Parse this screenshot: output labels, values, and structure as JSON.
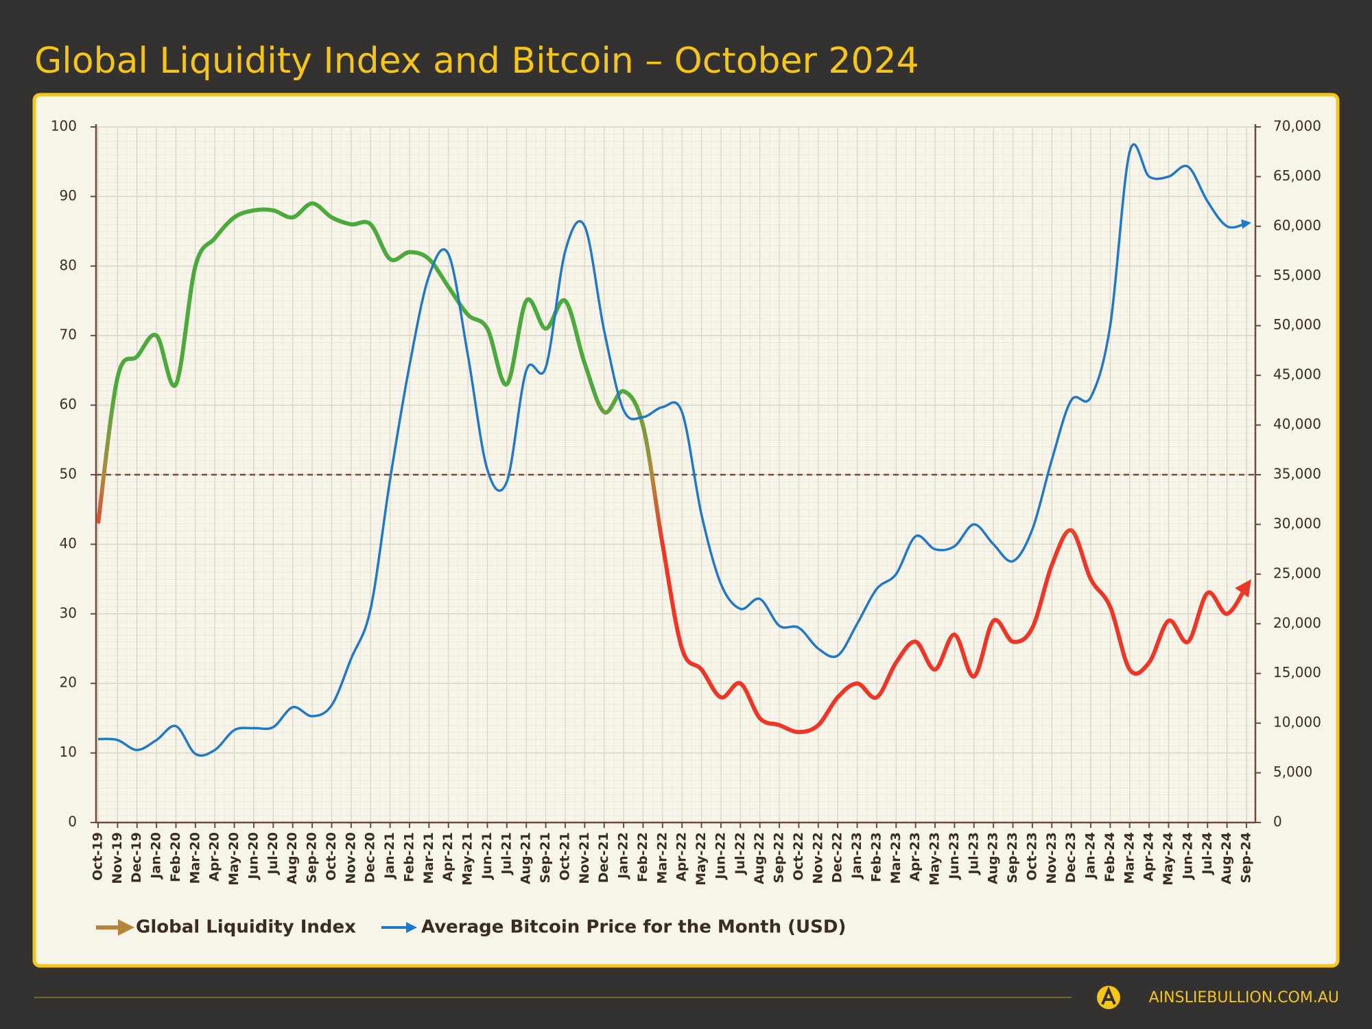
{
  "chart_data": {
    "type": "line",
    "title": "Global Liquidity Index and Bitcoin – October 2024",
    "footer": "AINSLIEBULLION.COM.AU",
    "categories": [
      "Oct-19",
      "Nov-19",
      "Dec-19",
      "Jan-20",
      "Feb-20",
      "Mar-20",
      "Apr-20",
      "May-20",
      "Jun-20",
      "Jul-20",
      "Aug-20",
      "Sep-20",
      "Oct-20",
      "Nov-20",
      "Dec-20",
      "Jan-21",
      "Feb-21",
      "Mar-21",
      "Apr-21",
      "May-21",
      "Jun-21",
      "Jul-21",
      "Aug-21",
      "Sep-21",
      "Oct-21",
      "Nov-21",
      "Dec-21",
      "Jan-22",
      "Feb-22",
      "Mar-22",
      "Apr-22",
      "May-22",
      "Jun-22",
      "Jul-22",
      "Aug-22",
      "Sep-22",
      "Oct-22",
      "Nov-22",
      "Dec-22",
      "Jan-23",
      "Feb-23",
      "Mar-23",
      "Apr-23",
      "May-23",
      "Jun-23",
      "Jul-23",
      "Aug-23",
      "Sep-23",
      "Oct-23",
      "Nov-23",
      "Dec-23",
      "Jan-24",
      "Feb-24",
      "Mar-24",
      "Apr-24",
      "May-24",
      "Jun-24",
      "Jul-24",
      "Aug-24",
      "Sep-24"
    ],
    "series": [
      {
        "name": "Global Liquidity Index",
        "color": "#b5833a",
        "gradient_colors": [
          "#4caa3c",
          "#b08a3c",
          "#ee3526"
        ],
        "values": [
          43,
          64,
          67,
          70,
          63,
          80,
          84,
          87,
          88,
          88,
          87,
          89,
          87,
          86,
          86,
          81,
          82,
          81,
          77,
          73,
          71,
          63,
          75,
          71,
          75,
          66,
          59,
          62,
          57,
          40,
          25,
          22,
          18,
          20,
          15,
          14,
          13,
          14,
          18,
          20,
          18,
          23,
          26,
          22,
          27,
          21,
          29,
          26,
          28,
          37,
          42,
          35,
          31,
          22,
          23,
          29,
          26,
          33,
          30,
          34
        ]
      },
      {
        "name": "Average Bitcoin Price for the Month (USD)",
        "color": "#1f78c8",
        "axis": "y2",
        "values": [
          8400,
          8300,
          7300,
          8300,
          9700,
          6900,
          7300,
          9300,
          9500,
          9600,
          11600,
          10700,
          11800,
          16500,
          21500,
          34500,
          46000,
          55000,
          57200,
          47000,
          35500,
          34300,
          45500,
          45800,
          57500,
          60000,
          49500,
          41500,
          40800,
          41800,
          41300,
          31000,
          24000,
          21500,
          22500,
          19800,
          19600,
          17500,
          16800,
          20000,
          23500,
          25000,
          28800,
          27500,
          27800,
          30000,
          28000,
          26300,
          29500,
          36500,
          42500,
          42800,
          50000,
          67500,
          65000,
          65000,
          66000,
          62500,
          60000,
          60300
        ]
      }
    ],
    "ylim": [
      0,
      100
    ],
    "yticks": [
      0,
      10,
      20,
      30,
      40,
      50,
      60,
      70,
      80,
      90,
      100
    ],
    "y2lim": [
      0,
      70000
    ],
    "y2ticks": [
      0,
      {
        "value": 5000,
        "label": "5,000"
      },
      {
        "value": 10000,
        "label": "10,000"
      },
      {
        "value": 15000,
        "label": "15,000"
      },
      {
        "value": 20000,
        "label": "20,000"
      },
      {
        "value": 25000,
        "label": "25,000"
      },
      {
        "value": 30000,
        "label": "30,000"
      },
      {
        "value": 35000,
        "label": "35,000"
      },
      {
        "value": 40000,
        "label": "40,000"
      },
      {
        "value": 45000,
        "label": "45,000"
      },
      {
        "value": 50000,
        "label": "50,000"
      },
      {
        "value": 55000,
        "label": "55,000"
      },
      {
        "value": 60000,
        "label": "60,000"
      },
      {
        "value": 65000,
        "label": "65,000"
      },
      {
        "value": 70000,
        "label": "70,000"
      }
    ],
    "reference_line": 50,
    "grid": true
  }
}
